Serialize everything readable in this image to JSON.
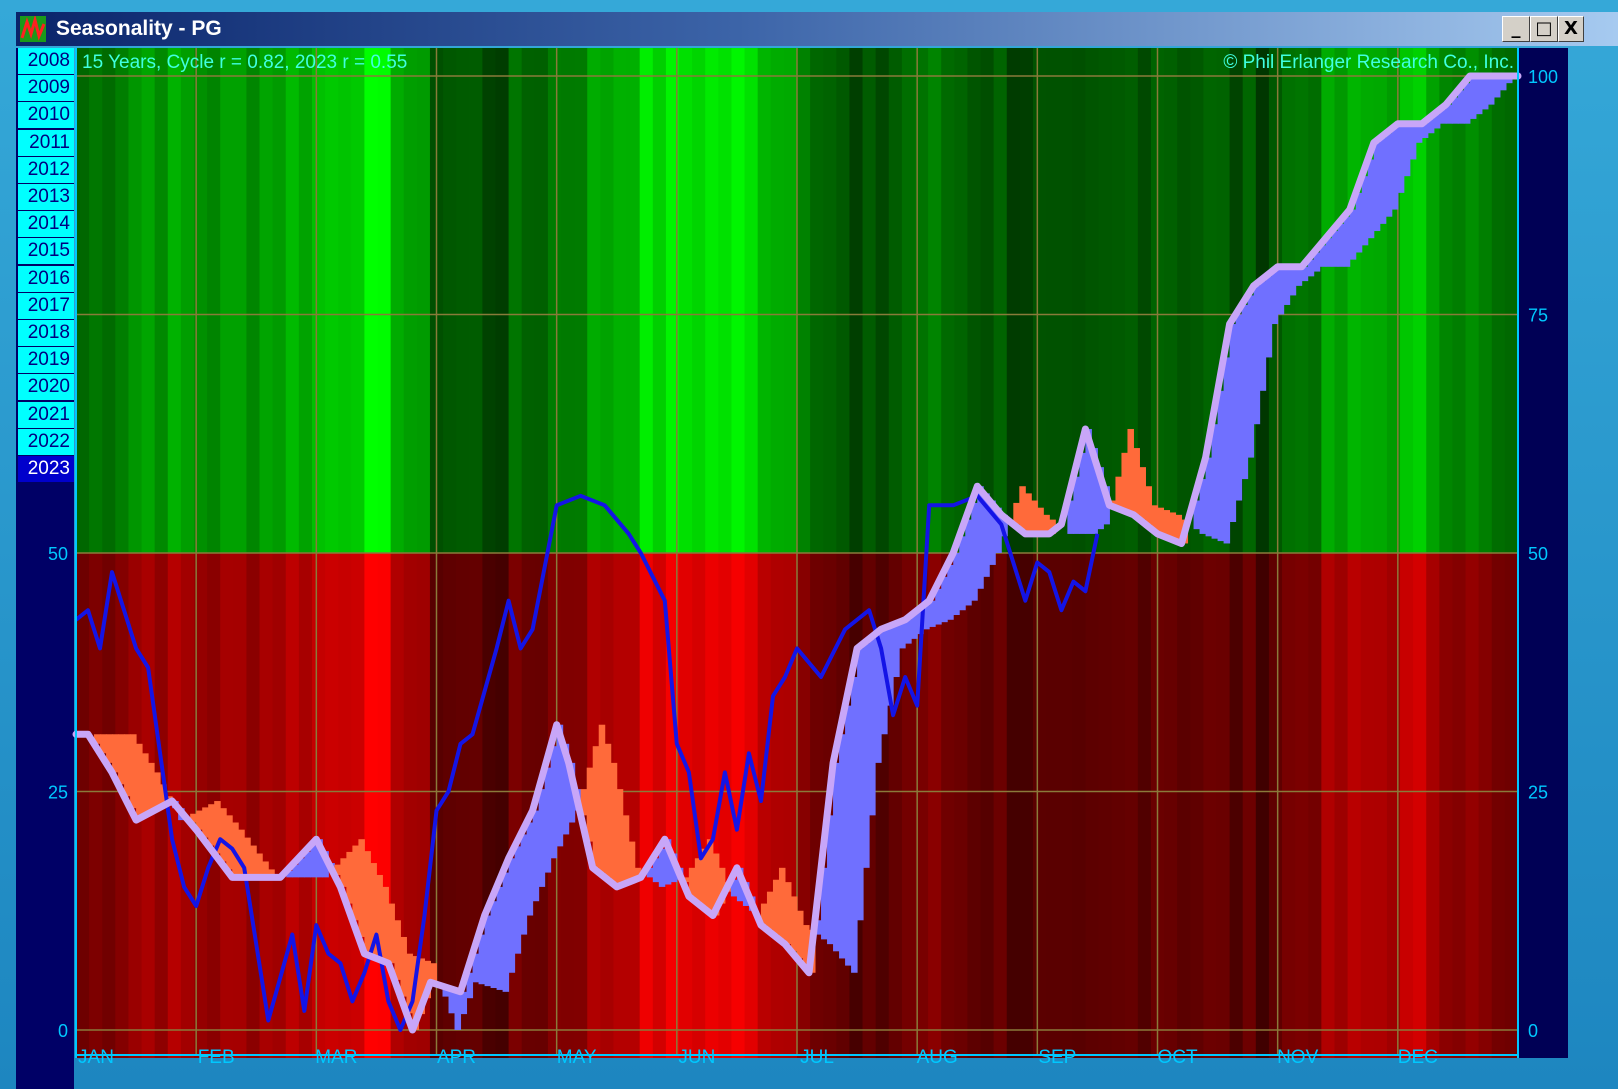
{
  "window": {
    "title": "Seasonality - PG",
    "min_label": "_",
    "max_label": "□",
    "close_label": "X"
  },
  "colors": {
    "positive_bg_bright": "#00ff00",
    "negative_bg_bright": "#ff0000",
    "current_year_line": "#1414e6",
    "cycle_line": "#c8a6f8",
    "fill_above": "#7070ff",
    "fill_below": "#ff6a3a",
    "grid": "#8a7a3a",
    "axis": "#00c8ff"
  },
  "year_panel": {
    "years": [
      "2008",
      "2009",
      "2010",
      "2011",
      "2012",
      "2013",
      "2014",
      "2015",
      "2016",
      "2017",
      "2018",
      "2019",
      "2020",
      "2021",
      "2022",
      "2023"
    ],
    "selected": "2023"
  },
  "chart_data": {
    "type": "line",
    "title": "15 Years, Cycle r = 0.82, 2023 r = 0.55",
    "copyright": "© Phil Erlanger Research Co., Inc.",
    "x_labels": [
      "JAN",
      "FEB",
      "MAR",
      "APR",
      "MAY",
      "JUN",
      "JUL",
      "AUG",
      "SEP",
      "OCT",
      "NOV",
      "DEC"
    ],
    "ylim": [
      0,
      100
    ],
    "y_ticks": [
      0,
      25,
      50,
      75,
      100
    ],
    "y_ticks_left": [
      0,
      25,
      50
    ],
    "grid": true,
    "x_unit": "month (0 = Jan 1, 12 = Dec 31)",
    "series": [
      {
        "name": "Cycle",
        "x": [
          0,
          0.1,
          0.3,
          0.5,
          0.8,
          1.0,
          1.3,
          1.5,
          1.7,
          2.0,
          2.2,
          2.4,
          2.6,
          2.8,
          2.95,
          3.2,
          3.4,
          3.6,
          3.8,
          4.0,
          4.1,
          4.3,
          4.5,
          4.7,
          4.9,
          5.1,
          5.3,
          5.5,
          5.7,
          5.9,
          6.1,
          6.3,
          6.5,
          6.7,
          6.9,
          7.1,
          7.3,
          7.5,
          7.7,
          7.9,
          8.1,
          8.2,
          8.4,
          8.6,
          8.8,
          9.0,
          9.2,
          9.4,
          9.6,
          9.8,
          10.0,
          10.2,
          10.4,
          10.6,
          10.8,
          11.0,
          11.2,
          11.4,
          11.6,
          11.8,
          12.0
        ],
        "values": [
          31,
          31,
          27,
          22,
          24,
          21,
          16,
          16,
          16,
          20,
          15,
          8,
          7,
          0,
          5,
          4,
          12,
          18,
          23,
          32,
          28,
          17,
          15,
          16,
          20,
          14,
          12,
          17,
          11,
          9,
          6,
          28,
          40,
          42,
          43,
          45,
          50,
          57,
          54,
          52,
          52,
          53,
          63,
          55,
          54,
          52,
          51,
          60,
          74,
          78,
          80,
          80,
          83,
          86,
          93,
          95,
          95,
          97,
          100,
          100,
          100
        ]
      },
      {
        "name": "2023",
        "x": [
          0,
          0.1,
          0.2,
          0.3,
          0.5,
          0.6,
          0.8,
          0.9,
          1.0,
          1.1,
          1.2,
          1.3,
          1.4,
          1.6,
          1.8,
          1.9,
          2.0,
          2.1,
          2.2,
          2.3,
          2.4,
          2.5,
          2.6,
          2.7,
          2.8,
          2.9,
          3.0,
          3.1,
          3.2,
          3.3,
          3.5,
          3.6,
          3.7,
          3.8,
          4.0,
          4.2,
          4.4,
          4.6,
          4.7,
          4.9,
          5.0,
          5.1,
          5.2,
          5.3,
          5.4,
          5.5,
          5.6,
          5.7,
          5.8,
          5.9,
          6.0,
          6.2,
          6.4,
          6.6,
          6.7,
          6.8,
          6.9,
          7.0,
          7.1,
          7.3,
          7.5,
          7.7,
          7.9,
          8.0,
          8.1,
          8.2,
          8.3,
          8.4,
          8.5
        ],
        "values": [
          43,
          44,
          40,
          48,
          40,
          38,
          20,
          15,
          13,
          17,
          20,
          19,
          17,
          1,
          10,
          2,
          11,
          8,
          7,
          3,
          6,
          10,
          3,
          0,
          3,
          12,
          23,
          25,
          30,
          31,
          40,
          45,
          40,
          42,
          55,
          56,
          55,
          52,
          50,
          45,
          30,
          27,
          18,
          20,
          27,
          21,
          29,
          24,
          35,
          37,
          40,
          37,
          42,
          44,
          40,
          33,
          37,
          34,
          55,
          55,
          56,
          53,
          45,
          49,
          48,
          44,
          47,
          46,
          52
        ]
      }
    ],
    "background_bands_note": "Top half green tint (cycle bullish above 50), bottom half red tint"
  }
}
